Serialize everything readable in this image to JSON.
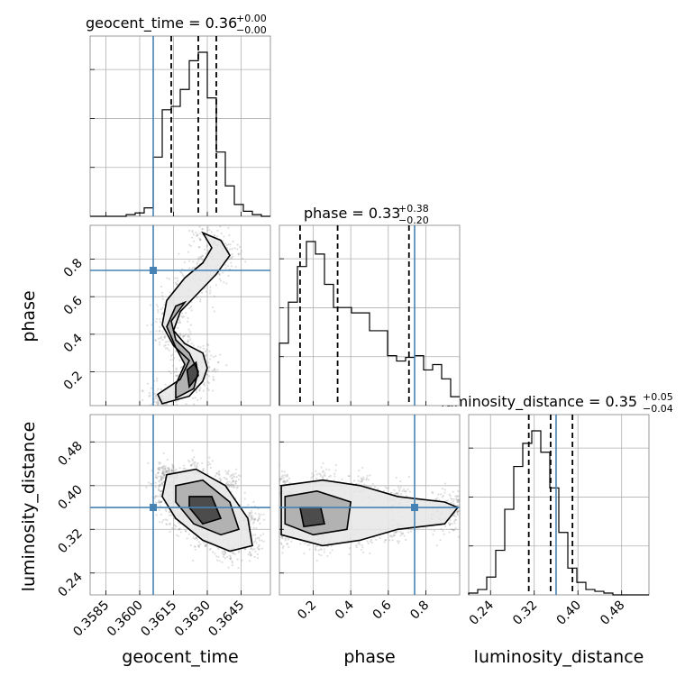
{
  "chart_data": {
    "type": "corner",
    "parameters": [
      {
        "name": "geocent_time",
        "title": "geocent_time = 0.36",
        "sup": "+0.00",
        "sub": "−0.00",
        "range": [
          0.3578,
          0.3658
        ],
        "ticks": [
          0.3585,
          0.36,
          0.3615,
          0.363,
          0.3645
        ],
        "tick_labels": [
          "0.3585",
          "0.3600",
          "0.3615",
          "0.3630",
          "0.3645"
        ],
        "truth": 0.3606,
        "quantiles": [
          0.3614,
          0.3626,
          0.3634
        ],
        "hist_edges_start": 0.3578,
        "hist_bin_width": 0.0004,
        "hist_counts": [
          0,
          0,
          0,
          0,
          1,
          2,
          5,
          35,
          63,
          65,
          75,
          92,
          97,
          70,
          38,
          18,
          7,
          3,
          1,
          0
        ]
      },
      {
        "name": "phase",
        "title": "phase = 0.33",
        "sup": "+0.38",
        "sub": "−0.20",
        "range": [
          0.02,
          0.98
        ],
        "ticks": [
          0.2,
          0.4,
          0.6,
          0.8
        ],
        "tick_labels": [
          "0.2",
          "0.4",
          "0.6",
          "0.8"
        ],
        "truth": 0.74,
        "quantiles": [
          0.13,
          0.33,
          0.71
        ],
        "hist_edges_start": 0.02,
        "hist_bin_width": 0.048,
        "hist_counts": [
          35,
          58,
          78,
          92,
          85,
          68,
          55,
          55,
          52,
          52,
          42,
          42,
          28,
          25,
          27,
          28,
          20,
          23,
          15,
          5
        ]
      },
      {
        "name": "luminosity_distance",
        "title": "luminosity_distance = 0.35",
        "sup": "+0.05",
        "sub": "−0.04",
        "range": [
          0.2,
          0.53
        ],
        "ticks": [
          0.24,
          0.32,
          0.4,
          0.48
        ],
        "tick_labels": [
          "0.24",
          "0.32",
          "0.40",
          "0.48"
        ],
        "truth": 0.36,
        "quantiles": [
          0.31,
          0.35,
          0.39
        ],
        "hist_edges_start": 0.2,
        "hist_bin_width": 0.0165,
        "hist_counts": [
          1,
          3,
          10,
          25,
          48,
          72,
          85,
          92,
          80,
          60,
          35,
          15,
          7,
          3,
          2,
          1,
          0,
          0,
          0,
          0
        ]
      }
    ],
    "pairs": [
      {
        "x": "geocent_time",
        "y": "phase",
        "truth_point": [
          0.3606,
          0.74
        ],
        "contours": [
          [
            [
              0.361,
              0.03
            ],
            [
              0.3622,
              0.07
            ],
            [
              0.3628,
              0.15
            ],
            [
              0.363,
              0.22
            ],
            [
              0.3628,
              0.3
            ],
            [
              0.362,
              0.35
            ],
            [
              0.3615,
              0.42
            ],
            [
              0.3618,
              0.52
            ],
            [
              0.3626,
              0.62
            ],
            [
              0.3634,
              0.72
            ],
            [
              0.364,
              0.82
            ],
            [
              0.3636,
              0.9
            ],
            [
              0.3628,
              0.94
            ],
            [
              0.3632,
              0.86
            ],
            [
              0.3628,
              0.78
            ],
            [
              0.362,
              0.7
            ],
            [
              0.3612,
              0.58
            ],
            [
              0.361,
              0.45
            ],
            [
              0.3615,
              0.34
            ],
            [
              0.3622,
              0.26
            ],
            [
              0.3618,
              0.16
            ],
            [
              0.3608,
              0.08
            ],
            [
              0.361,
              0.03
            ]
          ],
          [
            [
              0.3616,
              0.06
            ],
            [
              0.3624,
              0.11
            ],
            [
              0.3626,
              0.2
            ],
            [
              0.3622,
              0.3
            ],
            [
              0.3616,
              0.37
            ],
            [
              0.3614,
              0.47
            ],
            [
              0.362,
              0.57
            ],
            [
              0.3616,
              0.55
            ],
            [
              0.3612,
              0.44
            ],
            [
              0.3616,
              0.33
            ],
            [
              0.362,
              0.24
            ],
            [
              0.3616,
              0.13
            ],
            [
              0.3616,
              0.06
            ]
          ],
          [
            [
              0.3622,
              0.12
            ],
            [
              0.3626,
              0.18
            ],
            [
              0.3625,
              0.25
            ],
            [
              0.3621,
              0.21
            ],
            [
              0.3622,
              0.12
            ]
          ]
        ]
      },
      {
        "x": "geocent_time",
        "y": "luminosity_distance",
        "truth_point": [
          0.3606,
          0.36
        ],
        "contours": [
          [
            [
              0.3612,
              0.42
            ],
            [
              0.3625,
              0.43
            ],
            [
              0.3638,
              0.4
            ],
            [
              0.3648,
              0.34
            ],
            [
              0.365,
              0.29
            ],
            [
              0.364,
              0.28
            ],
            [
              0.3628,
              0.3
            ],
            [
              0.3616,
              0.34
            ],
            [
              0.361,
              0.38
            ],
            [
              0.3612,
              0.42
            ]
          ],
          [
            [
              0.3616,
              0.4
            ],
            [
              0.3628,
              0.41
            ],
            [
              0.364,
              0.37
            ],
            [
              0.3644,
              0.32
            ],
            [
              0.3636,
              0.31
            ],
            [
              0.3624,
              0.33
            ],
            [
              0.3616,
              0.37
            ],
            [
              0.3616,
              0.4
            ]
          ],
          [
            [
              0.3622,
              0.38
            ],
            [
              0.3632,
              0.38
            ],
            [
              0.3636,
              0.34
            ],
            [
              0.3628,
              0.33
            ],
            [
              0.3622,
              0.36
            ],
            [
              0.3622,
              0.38
            ]
          ]
        ]
      },
      {
        "x": "phase",
        "y": "luminosity_distance",
        "truth_point": [
          0.74,
          0.36
        ],
        "contours": [
          [
            [
              0.03,
              0.4
            ],
            [
              0.25,
              0.41
            ],
            [
              0.45,
              0.4
            ],
            [
              0.65,
              0.38
            ],
            [
              0.9,
              0.37
            ],
            [
              0.97,
              0.36
            ],
            [
              0.9,
              0.33
            ],
            [
              0.65,
              0.32
            ],
            [
              0.45,
              0.3
            ],
            [
              0.25,
              0.29
            ],
            [
              0.03,
              0.31
            ],
            [
              0.03,
              0.4
            ]
          ],
          [
            [
              0.05,
              0.38
            ],
            [
              0.22,
              0.39
            ],
            [
              0.4,
              0.37
            ],
            [
              0.38,
              0.32
            ],
            [
              0.2,
              0.31
            ],
            [
              0.05,
              0.33
            ],
            [
              0.05,
              0.38
            ]
          ],
          [
            [
              0.13,
              0.36
            ],
            [
              0.24,
              0.36
            ],
            [
              0.26,
              0.33
            ],
            [
              0.15,
              0.325
            ],
            [
              0.13,
              0.36
            ]
          ]
        ]
      }
    ],
    "sample_density_note": "",
    "grid": true
  },
  "colors": {
    "truth": "#4682b4",
    "contour": "#000000",
    "grid": "#b0b0b0"
  }
}
